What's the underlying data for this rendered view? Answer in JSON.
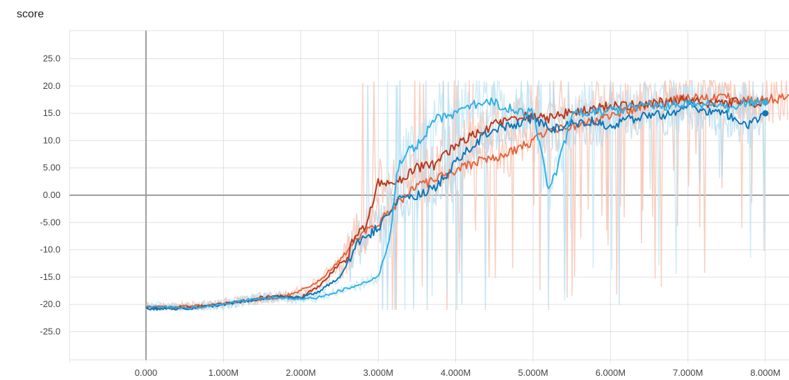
{
  "chart_data": {
    "type": "line",
    "title": "score",
    "xlabel": "",
    "ylabel": "",
    "xlim": [
      -1000000,
      8300000
    ],
    "ylim": [
      -30,
      30
    ],
    "x_ticks": [
      0,
      1000000,
      2000000,
      3000000,
      4000000,
      5000000,
      6000000,
      7000000,
      8000000
    ],
    "x_tick_labels": [
      "0.000",
      "1.000M",
      "2.000M",
      "3.000M",
      "4.000M",
      "5.000M",
      "6.000M",
      "7.000M",
      "8.000M"
    ],
    "y_ticks": [
      25,
      20,
      15,
      10,
      5,
      0,
      -5,
      -10,
      -15,
      -20,
      -25
    ],
    "y_tick_labels": [
      "25.0",
      "20.0",
      "15.0",
      "10.0",
      "5.00",
      "0.00",
      "-5.00",
      "-10.0",
      "-15.0",
      "-20.0",
      "-25.0"
    ],
    "grid": true,
    "series": [
      {
        "color": "#e8643c",
        "raw_color": "#f7c0ad",
        "x": [
          0,
          250000,
          500000,
          750000,
          1000000,
          1250000,
          1500000,
          1750000,
          2000000,
          2250000,
          2500000,
          2750000,
          3000000,
          3250000,
          3500000,
          3750000,
          4000000,
          4250000,
          4500000,
          4750000,
          5000000,
          5250000,
          5500000,
          5750000,
          6000000,
          6250000,
          6500000,
          6750000,
          7000000,
          7250000,
          7500000,
          7750000,
          8000000,
          8300000
        ],
        "y": [
          -20.5,
          -20.5,
          -20.4,
          -20.2,
          -19.8,
          -19.5,
          -19.0,
          -18.7,
          -17.5,
          -15.5,
          -12.0,
          -7.5,
          -5.0,
          -1.5,
          1.5,
          3.0,
          4.5,
          6.0,
          7.0,
          8.0,
          10.0,
          12.0,
          12.5,
          13.5,
          14.5,
          15.5,
          16.5,
          17.0,
          18.0,
          17.5,
          17.8,
          17.2,
          17.5,
          18.0
        ]
      },
      {
        "color": "#b5391f",
        "raw_color": "#f0bfae",
        "x": [
          0,
          250000,
          500000,
          750000,
          1000000,
          1250000,
          1500000,
          1750000,
          2000000,
          2250000,
          2500000,
          2600000,
          2700000,
          2850000,
          3000000,
          3250000,
          3500000,
          3750000,
          4000000,
          4250000,
          4500000,
          4750000,
          5000000,
          5250000,
          5500000,
          5750000,
          6000000,
          6250000,
          6500000,
          6750000,
          7000000,
          7250000,
          7500000,
          7750000,
          8000000
        ],
        "y": [
          -20.5,
          -20.6,
          -20.5,
          -20.3,
          -19.8,
          -19.3,
          -18.6,
          -18.5,
          -18.8,
          -16.5,
          -12.5,
          -11.5,
          -7.0,
          -5.5,
          2.5,
          2.5,
          5.0,
          5.5,
          9.5,
          11.0,
          13.0,
          14.0,
          14.5,
          14.0,
          15.5,
          15.5,
          16.5,
          16.5,
          17.0,
          17.0,
          17.5,
          16.5,
          17.0,
          17.0,
          17.0
        ]
      },
      {
        "color": "#0d77b8",
        "raw_color": "#b5d8ec",
        "x": [
          0,
          250000,
          500000,
          750000,
          1000000,
          1250000,
          1500000,
          1750000,
          2000000,
          2250000,
          2500000,
          2750000,
          3000000,
          3250000,
          3500000,
          3750000,
          4000000,
          4250000,
          4500000,
          4750000,
          5000000,
          5250000,
          5500000,
          5750000,
          6000000,
          6250000,
          6500000,
          6750000,
          7000000,
          7250000,
          7500000,
          7750000,
          8000000
        ],
        "y": [
          -20.8,
          -20.8,
          -20.8,
          -20.5,
          -20.0,
          -19.5,
          -19.0,
          -18.5,
          -18.8,
          -17.5,
          -15.0,
          -8.5,
          -6.0,
          -1.0,
          0.0,
          1.5,
          6.0,
          9.5,
          12.0,
          13.0,
          14.0,
          12.0,
          13.0,
          13.5,
          12.5,
          14.0,
          14.5,
          15.0,
          16.5,
          15.5,
          15.0,
          12.5,
          15.0
        ]
      },
      {
        "color": "#33b0e3",
        "raw_color": "#bde6f6",
        "x": [
          0,
          250000,
          500000,
          750000,
          1000000,
          1250000,
          1500000,
          1750000,
          2000000,
          2250000,
          2500000,
          2750000,
          3000000,
          3150000,
          3250000,
          3350000,
          3500000,
          3750000,
          4000000,
          4250000,
          4500000,
          4750000,
          5000000,
          5100000,
          5200000,
          5300000,
          5500000,
          5750000,
          6000000,
          6250000,
          6500000,
          6750000,
          7000000,
          7250000,
          7500000,
          7750000,
          8000000
        ],
        "y": [
          -20.5,
          -20.5,
          -20.7,
          -20.4,
          -20.0,
          -19.3,
          -18.8,
          -18.8,
          -19.0,
          -18.7,
          -17.5,
          -16.5,
          -15.0,
          -7.5,
          4.5,
          8.0,
          9.0,
          14.0,
          15.0,
          16.5,
          17.0,
          15.5,
          15.0,
          8.0,
          1.0,
          4.0,
          14.5,
          15.5,
          15.5,
          16.0,
          16.5,
          16.5,
          17.0,
          16.5,
          16.0,
          17.0,
          17.0
        ]
      }
    ]
  }
}
